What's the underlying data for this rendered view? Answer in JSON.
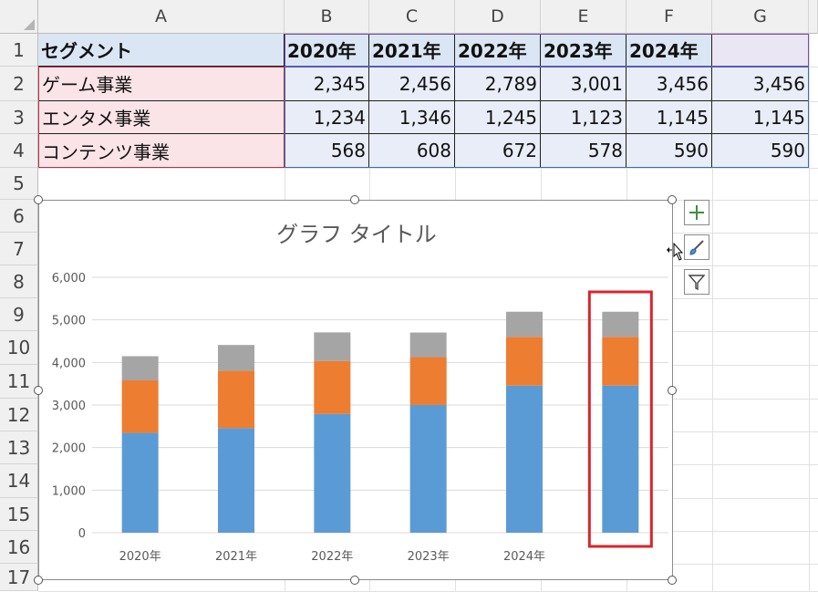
{
  "sheet": {
    "columns": [
      "A",
      "B",
      "C",
      "D",
      "E",
      "F",
      "G"
    ],
    "rows": [
      "1",
      "2",
      "3",
      "4",
      "5",
      "6",
      "7",
      "8",
      "9",
      "10",
      "11",
      "12",
      "13",
      "14",
      "15",
      "16",
      "17"
    ],
    "header_row": [
      "セグメント",
      "2020年",
      "2021年",
      "2022年",
      "2023年",
      "2024年",
      ""
    ],
    "data_rows": [
      {
        "label": "ゲーム事業",
        "values": [
          "2,345",
          "2,456",
          "2,789",
          "3,001",
          "3,456",
          "3,456"
        ]
      },
      {
        "label": "エンタメ事業",
        "values": [
          "1,234",
          "1,346",
          "1,245",
          "1,123",
          "1,145",
          "1,145"
        ]
      },
      {
        "label": "コンテンツ事業",
        "values": [
          "568",
          "608",
          "672",
          "578",
          "590",
          "590"
        ]
      }
    ]
  },
  "chart_data": {
    "type": "bar",
    "stacked": true,
    "title": "グラフ タイトル",
    "categories": [
      "2020年",
      "2021年",
      "2022年",
      "2023年",
      "2024年",
      ""
    ],
    "series": [
      {
        "name": "ゲーム事業",
        "color": "#5b9bd5",
        "values": [
          2345,
          2456,
          2789,
          3001,
          3456,
          3456
        ]
      },
      {
        "name": "エンタメ事業",
        "color": "#ed7d31",
        "values": [
          1234,
          1346,
          1245,
          1123,
          1145,
          1145
        ]
      },
      {
        "name": "コンテンツ事業",
        "color": "#a5a5a5",
        "values": [
          568,
          608,
          672,
          578,
          590,
          590
        ]
      }
    ],
    "ylim": [
      0,
      6000
    ],
    "yticks": [
      "0",
      "1,000",
      "2,000",
      "3,000",
      "4,000",
      "5,000",
      "6,000"
    ],
    "grid": true,
    "highlight": {
      "category_index": 5,
      "color": "#d9262c"
    }
  },
  "chart_buttons": {
    "elements": "chart-elements-plus-icon",
    "styles": "chart-styles-brush-icon",
    "filters": "chart-filters-funnel-icon"
  },
  "colors": {
    "header_fill": "#dbe6f4",
    "label_fill": "#fbe4e8",
    "value_fill": "#e8edf7",
    "blue": "#5b9bd5",
    "orange": "#ed7d31",
    "gray": "#a5a5a5",
    "highlight": "#d9262c"
  }
}
